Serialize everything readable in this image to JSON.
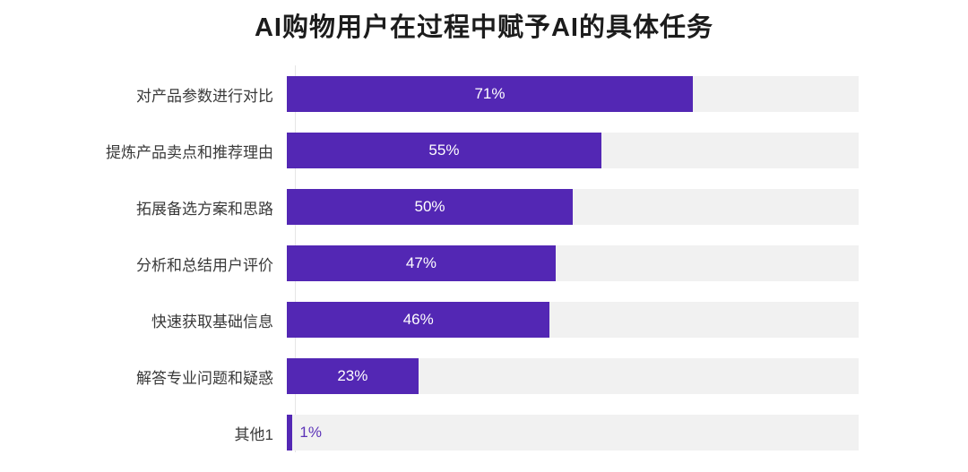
{
  "title": "AI购物用户在过程中赋予AI的具体任务",
  "chart_data": {
    "type": "bar",
    "orientation": "horizontal",
    "title": "AI购物用户在过程中赋予AI的具体任务",
    "categories": [
      "对产品参数进行对比",
      "提炼产品卖点和推荐理由",
      "拓展备选方案和思路",
      "分析和总结用户评价",
      "快速获取基础信息",
      "解答专业问题和疑惑",
      "其他1"
    ],
    "values": [
      71,
      55,
      50,
      47,
      46,
      23,
      1
    ],
    "value_labels": [
      "71%",
      "55%",
      "50%",
      "47%",
      "46%",
      "23%",
      "1%"
    ],
    "xlim": [
      0,
      100
    ],
    "grid": "off",
    "legend": "none",
    "colors": {
      "bar": "#5327b4",
      "track": "#f1f1f1",
      "axis_line": "#e6e6e6",
      "title_text": "#1c1c1c",
      "category_text": "#3a3a3a",
      "value_in_bar_text": "#ffffff",
      "value_outside_text": "#5c33b8"
    }
  }
}
